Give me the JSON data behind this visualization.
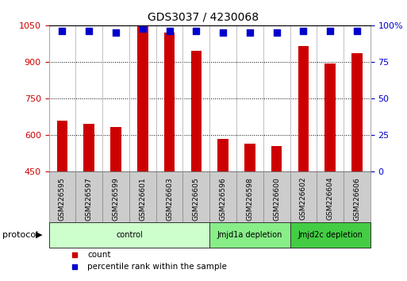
{
  "title": "GDS3037 / 4230068",
  "samples": [
    "GSM226595",
    "GSM226597",
    "GSM226599",
    "GSM226601",
    "GSM226603",
    "GSM226605",
    "GSM226596",
    "GSM226598",
    "GSM226600",
    "GSM226602",
    "GSM226604",
    "GSM226606"
  ],
  "counts": [
    660,
    648,
    635,
    1050,
    1020,
    945,
    585,
    565,
    555,
    965,
    895,
    935
  ],
  "percentile_ranks": [
    96,
    96,
    95,
    98,
    96,
    96,
    95,
    95,
    95,
    96,
    96,
    96
  ],
  "ylim_left": [
    450,
    1050
  ],
  "ylim_right": [
    0,
    100
  ],
  "yticks_left": [
    450,
    600,
    750,
    900,
    1050
  ],
  "yticks_right": [
    0,
    25,
    50,
    75,
    100
  ],
  "bar_color": "#cc0000",
  "dot_color": "#0000cc",
  "bg_color": "#ffffff",
  "cell_bg": "#cccccc",
  "protocol_groups": [
    {
      "label": "control",
      "indices": [
        0,
        1,
        2,
        3,
        4,
        5
      ],
      "color": "#ccffcc"
    },
    {
      "label": "Jmjd1a depletion",
      "indices": [
        6,
        7,
        8
      ],
      "color": "#88ee88"
    },
    {
      "label": "Jmjd2c depletion",
      "indices": [
        9,
        10,
        11
      ],
      "color": "#44cc44"
    }
  ],
  "bar_width": 0.4,
  "dot_size": 30,
  "protocol_label": "protocol",
  "legend_items": [
    {
      "label": "count",
      "color": "#cc0000"
    },
    {
      "label": "percentile rank within the sample",
      "color": "#0000cc"
    }
  ]
}
